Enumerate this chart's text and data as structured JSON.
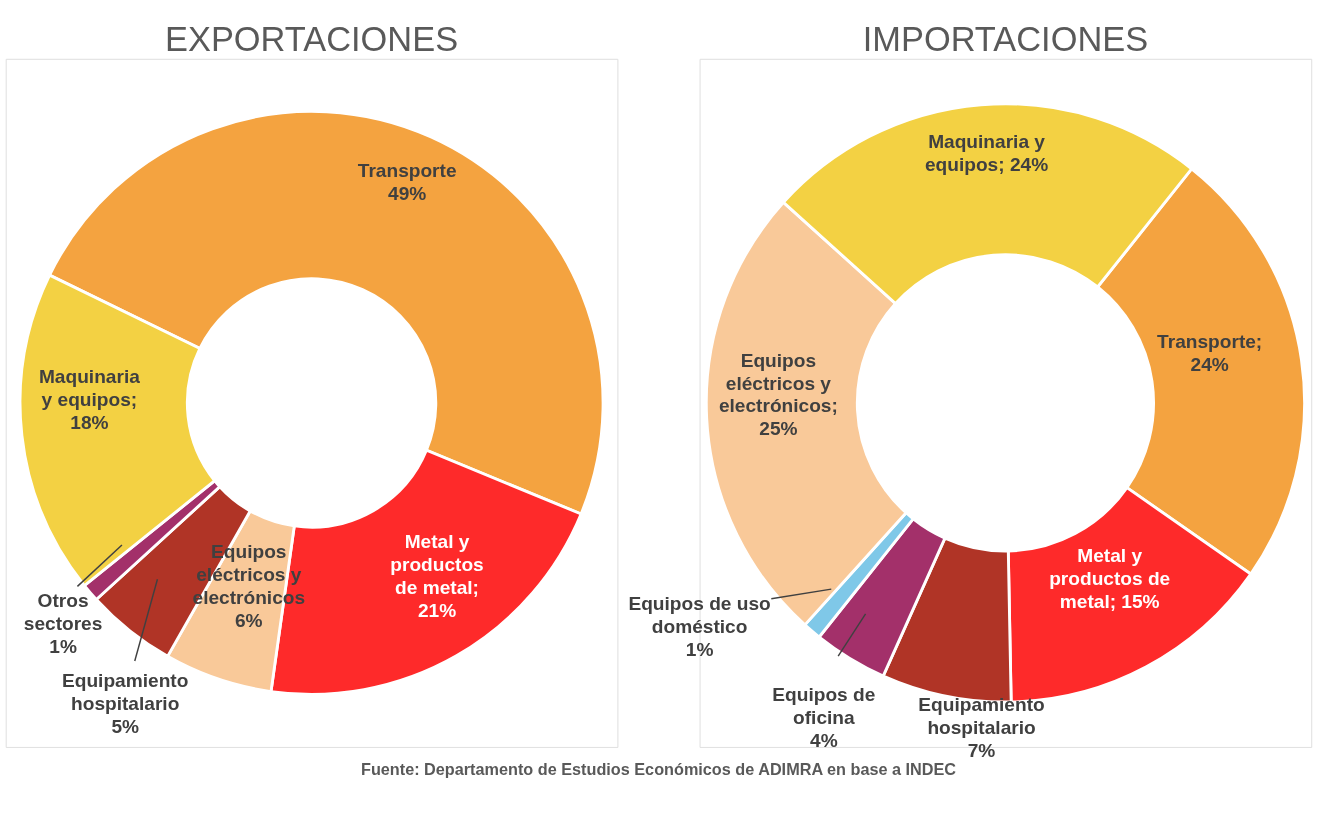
{
  "chart_data": [
    {
      "type": "donut",
      "title": "EXPORTACIONES",
      "categories": [
        "Transporte",
        "Metal y productos de metal",
        "Equipos eléctricos y electrónicos",
        "Equipamiento hospitalario",
        "Otros sectores",
        "Maquinaria y equipos"
      ],
      "values": [
        49,
        21,
        6,
        5,
        1,
        18
      ],
      "colors": [
        "#f4a340",
        "#fe2a2a",
        "#f9c999",
        "#b03426",
        "#a3306a",
        "#f3d143"
      ],
      "value_labels": [
        "49%",
        "; 21%",
        "6%",
        "5%",
        "1%",
        "; 18%"
      ]
    },
    {
      "type": "donut",
      "title": "IMPORTACIONES",
      "categories": [
        "Transporte",
        "Metal y productos de metal",
        "Equipamiento hospitalario",
        "Equipos de oficina",
        "Equipos de uso doméstico",
        "Equipos eléctricos y electrónicos",
        "Maquinaria y equipos"
      ],
      "values": [
        24,
        15,
        7,
        4,
        1,
        25,
        24
      ],
      "colors": [
        "#f4a340",
        "#fe2a2a",
        "#b03426",
        "#a3306a",
        "#7fc8e8",
        "#f9c999",
        "#f3d143"
      ],
      "value_labels": [
        "; 24%",
        "; 15%",
        "7%",
        "4%",
        "1%",
        "; 25%",
        "; 24%"
      ],
      "annotations": [
        "Fuente: Departamento de Estudios Económicos de ADIMRA en base a INDEC"
      ]
    }
  ]
}
